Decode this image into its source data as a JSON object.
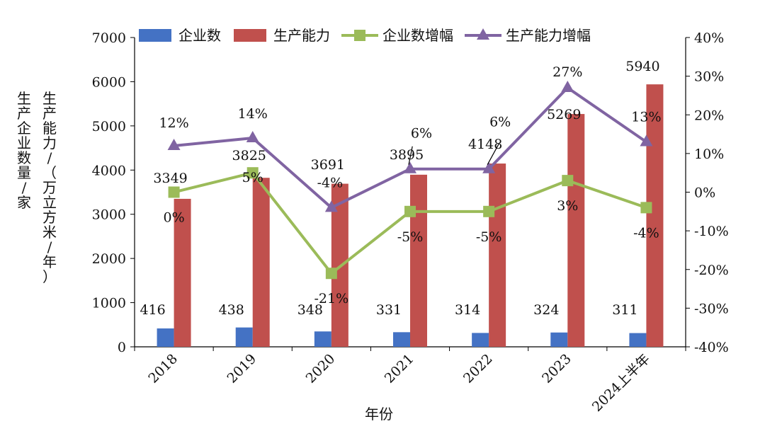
{
  "chart_data": {
    "type": "bar",
    "categories": [
      "2018",
      "2019",
      "2020",
      "2021",
      "2022",
      "2023",
      "2024上半年"
    ],
    "series": [
      {
        "name": "企业数",
        "kind": "bar",
        "axis": "left",
        "color": "#4472C4",
        "values": [
          416,
          438,
          348,
          331,
          314,
          324,
          311
        ]
      },
      {
        "name": "生产能力",
        "kind": "bar",
        "axis": "left",
        "color": "#C0504D",
        "values": [
          3349,
          3825,
          3691,
          3895,
          4148,
          5269,
          5940
        ]
      },
      {
        "name": "企业数增幅",
        "kind": "line",
        "marker": "square",
        "axis": "right",
        "color": "#9BBB59",
        "values": [
          0,
          5,
          -21,
          -5,
          -5,
          3,
          -4
        ],
        "labels": [
          "0%",
          "5%",
          "-21%",
          "-5%",
          "-5%",
          "3%",
          "-4%"
        ]
      },
      {
        "name": "生产能力增幅",
        "kind": "line",
        "marker": "triangle",
        "axis": "right",
        "color": "#8064A2",
        "values": [
          12,
          14,
          -4,
          6,
          6,
          27,
          13
        ],
        "labels": [
          "12%",
          "14%",
          "-4%",
          "6%",
          "6%",
          "27%",
          "13%"
        ]
      }
    ],
    "y_left": {
      "label_col1": "生产企业数量/家",
      "label_col2": "生产能力/（万立方米/年）",
      "ylim": [
        0,
        7000
      ],
      "ticks": [
        "0",
        "1000",
        "2000",
        "3000",
        "4000",
        "5000",
        "6000",
        "7000"
      ]
    },
    "y_right": {
      "ylim": [
        -40,
        40
      ],
      "ticks": [
        "-40%",
        "-30%",
        "-20%",
        "-10%",
        "0%",
        "10%",
        "20%",
        "30%",
        "40%"
      ]
    },
    "xlabel": "年份",
    "legend_position": "top",
    "grid": false
  }
}
